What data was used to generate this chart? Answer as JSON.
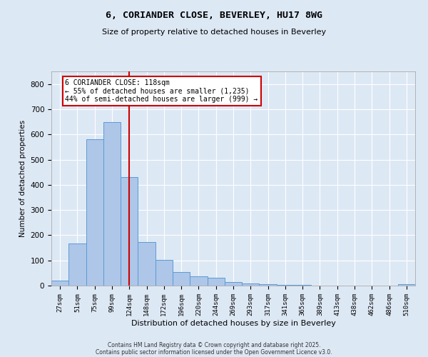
{
  "title": "6, CORIANDER CLOSE, BEVERLEY, HU17 8WG",
  "subtitle": "Size of property relative to detached houses in Beverley",
  "xlabel": "Distribution of detached houses by size in Beverley",
  "ylabel": "Number of detached properties",
  "bar_labels": [
    "27sqm",
    "51sqm",
    "75sqm",
    "99sqm",
    "124sqm",
    "148sqm",
    "172sqm",
    "196sqm",
    "220sqm",
    "244sqm",
    "269sqm",
    "293sqm",
    "317sqm",
    "341sqm",
    "365sqm",
    "389sqm",
    "413sqm",
    "438sqm",
    "462sqm",
    "486sqm",
    "510sqm"
  ],
  "bar_values": [
    20,
    167,
    581,
    648,
    430,
    172,
    103,
    55,
    38,
    30,
    15,
    9,
    5,
    3,
    2,
    1,
    0,
    0,
    0,
    0,
    5
  ],
  "bar_color": "#aec6e8",
  "bar_edge_color": "#5b9bd5",
  "vline_pos": 4.0,
  "property_line_label": "6 CORIANDER CLOSE: 118sqm",
  "annotation_line1": "← 55% of detached houses are smaller (1,235)",
  "annotation_line2": "44% of semi-detached houses are larger (999) →",
  "vline_color": "#cc0000",
  "annotation_box_edge": "#cc0000",
  "background_color": "#dde8f5",
  "footer_line1": "Contains HM Land Registry data © Crown copyright and database right 2025.",
  "footer_line2": "Contains public sector information licensed under the Open Government Licence v3.0.",
  "ylim": [
    0,
    850
  ],
  "yticks": [
    0,
    100,
    200,
    300,
    400,
    500,
    600,
    700,
    800
  ]
}
